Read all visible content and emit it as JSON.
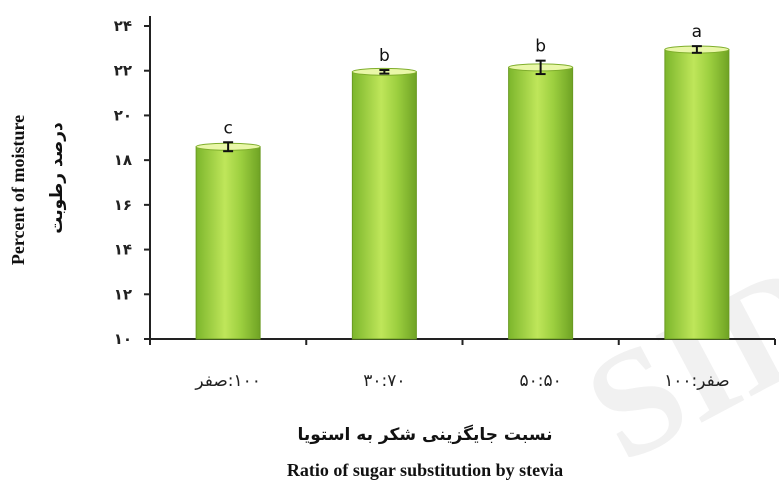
{
  "watermark": "SID",
  "chart_data": {
    "type": "bar",
    "categories": [
      "۱۰۰:صفر",
      "۳۰:۷۰",
      "۵۰:۵۰",
      "صفر:۱۰۰"
    ],
    "values": [
      18.6,
      21.95,
      22.15,
      22.95
    ],
    "errors": [
      0.2,
      0.08,
      0.3,
      0.15
    ],
    "significance_letters": [
      "c",
      "b",
      "b",
      "a"
    ],
    "ylabel_en": "Percent of moisture",
    "ylabel_fa": "درصد رطوبت",
    "xlabel_fa": "نسبت جایگزینی شکر به استویا",
    "xlabel_en": "Ratio of sugar substitution by stevia",
    "ylim": [
      10,
      24
    ],
    "yticks": [
      10,
      12,
      14,
      16,
      18,
      20,
      22,
      24
    ],
    "ytick_labels": [
      "۱۰",
      "۱۲",
      "۱۴",
      "۱۶",
      "۱۸",
      "۲۰",
      "۲۲",
      "۲۴"
    ],
    "bar_color": "#8cc63f",
    "bar_highlight": "#c9ec6a",
    "bar_top_color": "#e9f7a8",
    "grid": false,
    "legend": "none"
  }
}
